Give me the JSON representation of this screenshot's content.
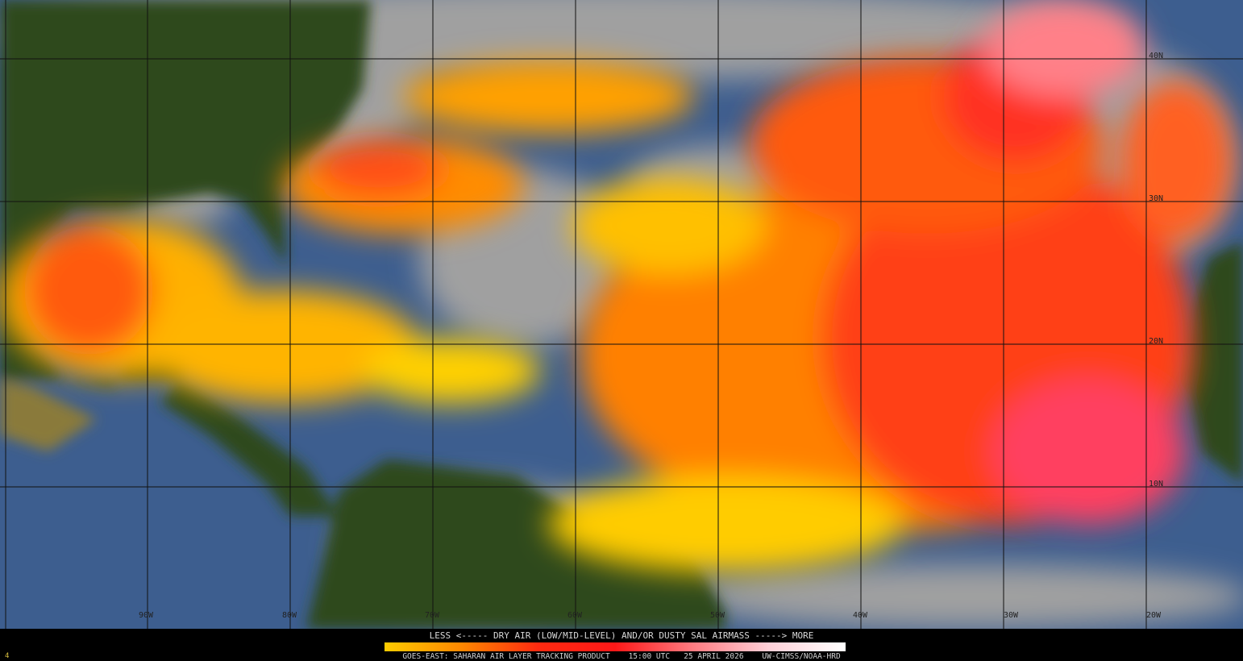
{
  "map": {
    "lat_labels": [
      "40N",
      "30N",
      "20N",
      "10N"
    ],
    "lon_labels": [
      "90W",
      "80W",
      "70W",
      "60W",
      "50W",
      "40W",
      "30W",
      "20W"
    ],
    "colors": {
      "ocean": "#3d5e8f",
      "land": "#2f4a1f",
      "cloud": "#9a9a9a",
      "sal_low": "#ffd200",
      "sal_mid": "#ff7a00",
      "sal_high": "#ff2020",
      "sal_max": "#ffe0e8"
    }
  },
  "legend": {
    "title": "LESS <----- DRY AIR (LOW/MID-LEVEL) AND/OR DUSTY SAL AIRMASS -----> MORE",
    "colorbar_stops": [
      "#ffcc00",
      "#ff8800",
      "#ff2a10",
      "#ff1818",
      "#ff7a80",
      "#ffd0d8",
      "#ffffff"
    ],
    "footer": "GOES-EAST: SAHARAN AIR LAYER TRACKING PRODUCT    15:00 UTC   25 APRIL 2026    UW-CIMSS/NOAA-HRD",
    "frame_number": "4"
  }
}
